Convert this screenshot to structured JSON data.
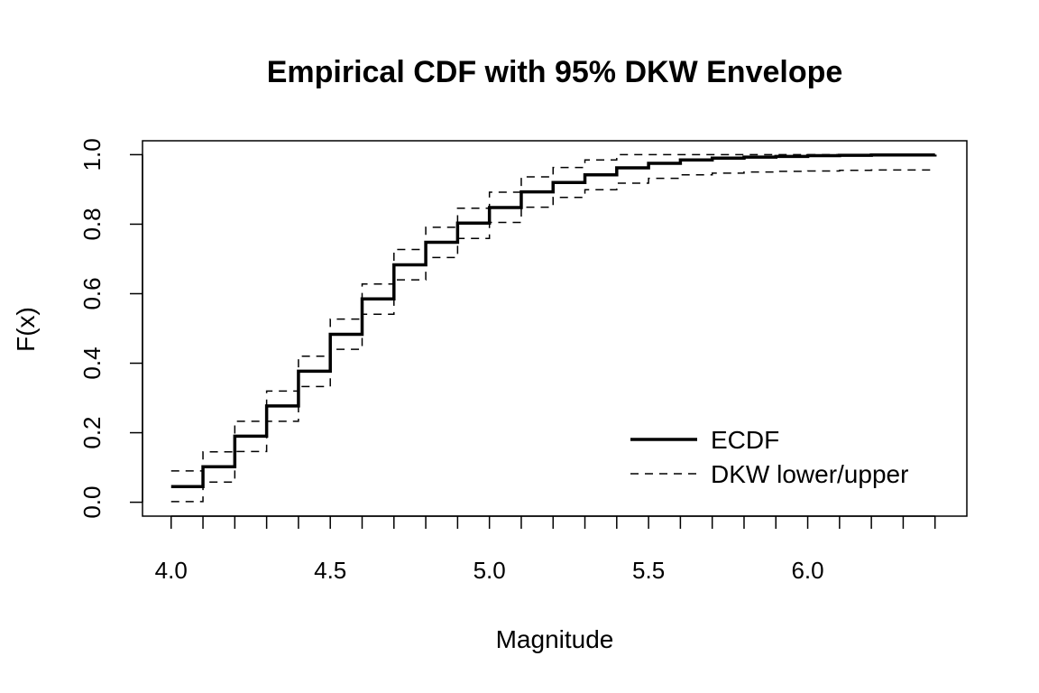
{
  "chart_data": {
    "type": "line",
    "title": "Empirical CDF with 95% DKW Envelope",
    "xlabel": "Magnitude",
    "ylabel": "F(x)",
    "xlim": [
      3.91,
      6.5
    ],
    "ylim": [
      -0.04,
      1.04
    ],
    "x_ticks": [
      4.0,
      4.5,
      5.0,
      5.5,
      6.0
    ],
    "x_tick_labels": [
      "4.0",
      "4.5",
      "5.0",
      "5.5",
      "6.0"
    ],
    "x_minor_ticks": [
      4.1,
      4.2,
      4.3,
      4.4,
      4.6,
      4.7,
      4.8,
      4.9,
      5.1,
      5.2,
      5.3,
      5.4,
      5.6,
      5.7,
      5.8,
      5.9,
      6.1,
      6.2,
      6.3,
      6.4
    ],
    "y_ticks": [
      0.0,
      0.2,
      0.4,
      0.6,
      0.8,
      1.0
    ],
    "y_tick_labels": [
      "0.0",
      "0.2",
      "0.4",
      "0.6",
      "0.8",
      "1.0"
    ],
    "grid": false,
    "legend": {
      "position": "bottom-right",
      "entries": [
        "ECDF",
        "DKW lower/upper"
      ]
    },
    "x": [
      4.0,
      4.1,
      4.2,
      4.3,
      4.4,
      4.5,
      4.6,
      4.7,
      4.8,
      4.9,
      5.0,
      5.1,
      5.2,
      5.3,
      5.4,
      5.5,
      5.6,
      5.7,
      5.8,
      5.9,
      6.0,
      6.1,
      6.2,
      6.3,
      6.4
    ],
    "series": [
      {
        "name": "ECDF",
        "style": "solid",
        "values": [
          0.045,
          0.102,
          0.19,
          0.277,
          0.377,
          0.483,
          0.585,
          0.683,
          0.748,
          0.803,
          0.848,
          0.893,
          0.92,
          0.942,
          0.962,
          0.975,
          0.985,
          0.99,
          0.993,
          0.995,
          0.997,
          0.998,
          0.999,
          0.999,
          1.0
        ]
      },
      {
        "name": "DKW upper",
        "style": "dashed",
        "values": [
          0.09,
          0.145,
          0.233,
          0.32,
          0.42,
          0.527,
          0.628,
          0.727,
          0.791,
          0.846,
          0.892,
          0.936,
          0.963,
          0.985,
          1.0,
          1.0,
          1.0,
          1.0,
          1.0,
          1.0,
          1.0,
          1.0,
          1.0,
          1.0,
          1.0
        ]
      },
      {
        "name": "DKW lower",
        "style": "dashed",
        "values": [
          0.002,
          0.058,
          0.146,
          0.233,
          0.333,
          0.44,
          0.541,
          0.64,
          0.704,
          0.759,
          0.805,
          0.849,
          0.877,
          0.899,
          0.918,
          0.932,
          0.942,
          0.947,
          0.95,
          0.952,
          0.953,
          0.955,
          0.956,
          0.956,
          0.957
        ]
      }
    ],
    "colors": {
      "line": "#000000",
      "background": "#ffffff"
    }
  }
}
